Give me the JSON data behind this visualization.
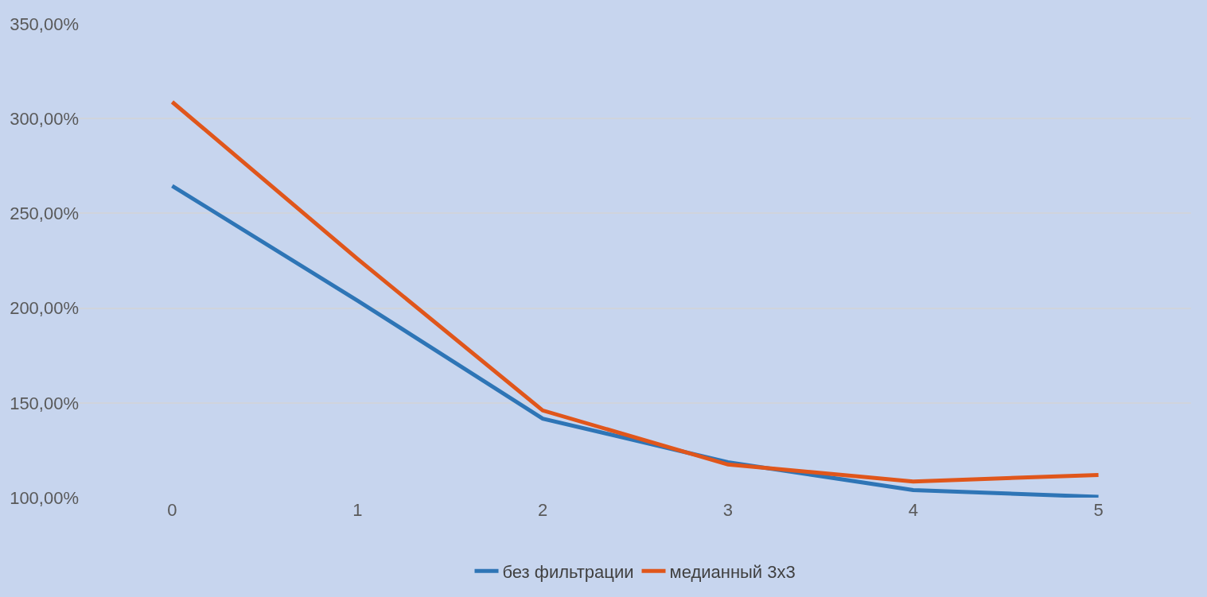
{
  "chart_data": {
    "type": "line",
    "categories": [
      "0",
      "1",
      "2",
      "3",
      "4",
      "5"
    ],
    "series": [
      {
        "name": "без фильтрации",
        "color": "#2e75b6",
        "values": [
          264.5,
          204,
          141.7,
          118.7,
          104,
          100.4
        ]
      },
      {
        "name": "медианный 3x3",
        "color": "#e0561b",
        "values": [
          308.8,
          226,
          146,
          117.5,
          108.5,
          112
        ]
      }
    ],
    "ylim": [
      100,
      350
    ],
    "yticks": [
      {
        "value": 100,
        "label": "100,00%"
      },
      {
        "value": 150,
        "label": "150,00%"
      },
      {
        "value": 200,
        "label": "200,00%"
      },
      {
        "value": 250,
        "label": "250,00%"
      },
      {
        "value": 300,
        "label": "300,00%"
      },
      {
        "value": 350,
        "label": "350,00%"
      }
    ],
    "grid": "y",
    "legend": "bottom",
    "marker": "none",
    "line_style": "solid"
  }
}
